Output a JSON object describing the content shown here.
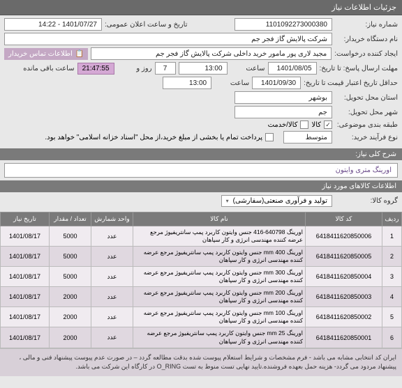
{
  "header": {
    "title": "جزئیات اطلاعات نیاز"
  },
  "form": {
    "need_no_label": "شماره نیاز:",
    "need_no": "1101092273000380",
    "announce_label": "تاریخ و ساعت اعلان عمومی:",
    "announce_value": "1401/07/27 - 14:22",
    "org_label": "نام دستگاه خریدار:",
    "org_value": "شرکت پالایش گاز فجر جم",
    "requester_label": "ایجاد کننده درخواست:",
    "requester_value": "مجید لاری پور مامور خرید داخلی شرکت پالایش گاز فجر جم",
    "buyer_info_label": "اطلاعات تماس خریدار",
    "deadline_label": "مهلت ارسال پاسخ: تا تاریخ:",
    "deadline_date": "1401/08/05",
    "time_label": "ساعت",
    "deadline_time": "13:00",
    "days": "7",
    "days_label": "روز و",
    "timer": "21:47:55",
    "timer_label": "ساعت باقی مانده",
    "validity_label": "حداقل تاریخ اعتبار قیمت تا تاریخ:",
    "validity_date": "1401/09/30",
    "validity_time": "13:00",
    "province_label": "استان محل تحویل:",
    "province": "بوشهر",
    "city_label": "شهر محل تحویل:",
    "city": "جم",
    "subject_class_label": "طبقه بندی موضوعی:",
    "goods_check": "کالا",
    "service_check": "کالا/خدمت",
    "process_label": "نوع فرآیند خرید:",
    "process": "متوسط",
    "payment_note": "پرداخت تمام یا بخشی از مبلغ خرید،از محل \"اسناد خزانه اسلامی\" خواهد بود."
  },
  "need_desc": {
    "header": "شرح کلی نیاز:",
    "text": "اورینگ متری وایتون"
  },
  "goods": {
    "header": "اطلاعات کالاهای مورد نیاز",
    "group_label": "گروه کالا:",
    "group_value": "تولید و فرآوری صنعتی(سفارشی)",
    "columns": [
      "ردیف",
      "کد کالا",
      "نام کالا",
      "واحد شمارش",
      "تعداد / مقدار",
      "تاریخ نیاز"
    ],
    "rows": [
      {
        "n": "1",
        "code": "6418411620850006",
        "desc": "اورینگ 640798-416 جنس وایتون کاربرد پمپ سانتریفیوژ مرجع عرضه کننده مهندسی انرژی و کار سپاهان",
        "unit": "عدد",
        "qty": "5000",
        "date": "1401/08/17"
      },
      {
        "n": "2",
        "code": "6418411620850005",
        "desc": "اورینگ mm 400 جنس وایتون کاربرد پمپ سانتریفیوژ مرجع عرضه کننده مهندسی انرژی و کار سپاهان",
        "unit": "عدد",
        "qty": "5000",
        "date": "1401/08/17"
      },
      {
        "n": "3",
        "code": "6418411620850004",
        "desc": "اورینگ mm 300 جنس وایتون کاربرد پمپ سانتریفیوژ مرجع عرضه کننده مهندسی انرژی و کار سپاهان",
        "unit": "عدد",
        "qty": "5000",
        "date": "1401/08/17"
      },
      {
        "n": "4",
        "code": "6418411620850003",
        "desc": "اورینگ mm 200 جنس وایتون کاربرد پمپ سانتریفیوژ مرجع عرضه کننده مهندسی انرژی و کار سپاهان",
        "unit": "عدد",
        "qty": "2000",
        "date": "1401/08/17"
      },
      {
        "n": "5",
        "code": "6418411620850002",
        "desc": "اورینگ mm 100 جنس وایتون کاربرد پمپ سانتریفیوژ مرجع عرضه کننده مهندسی انرژی و کار سپاهان",
        "unit": "عدد",
        "qty": "2000",
        "date": "1401/08/17"
      },
      {
        "n": "6",
        "code": "6418411620850001",
        "desc": "اورینگ mm 25 جنس وایتون کاربرد پمپ سانتریفیوژ مرجع عرضه کننده مهندسی انرژی و کار سپاهان",
        "unit": "عدد",
        "qty": "2000",
        "date": "1401/08/17"
      }
    ]
  },
  "note": "ایران کد انتخابی مشابه می باشد - فرم مشخصات و شرایط استعلام پیوست شده بدقت مطالعه گردد – در صورت عدم پیوست پیشنهاد فنی و مالی ، پیشنهاد مردود می گردد- هزینه حمل بعهده فروشنده.تایید نهایی تست منوط به تست O_RING در کارگاه این شرکت می باشد.",
  "colors": {
    "header_bg": "#6a6a6a",
    "timer_bg": "#d4a8d4",
    "highlight_bg": "#c4a8c4",
    "row_odd": "#f0ebf0",
    "row_even": "#e0d8e0",
    "note_bg": "#d8d0d8"
  }
}
